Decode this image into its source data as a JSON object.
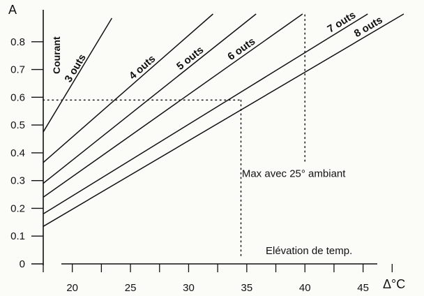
{
  "chart_data": {
    "type": "line",
    "title": "",
    "ylabel": "Courant",
    "yunit": "A",
    "xlabel": "Elévation de temp.",
    "xunit": "Δ°C",
    "xlim": [
      17.5,
      48.5
    ],
    "ylim": [
      0,
      0.9
    ],
    "x_ticks": [
      20,
      25,
      30,
      35,
      40,
      45
    ],
    "y_ticks": [
      0,
      0.1,
      0.2,
      0.3,
      0.4,
      0.5,
      0.6,
      0.7,
      0.8
    ],
    "y_tick_labels": [
      "0",
      "0.1",
      "0.2",
      "0.3",
      "0.4",
      "0.5",
      "0.6",
      "0.7",
      "0.8"
    ],
    "grid": false,
    "series": [
      {
        "name": "3 outs",
        "x": [
          17.5,
          23.4
        ],
        "y": [
          0.475,
          0.885
        ]
      },
      {
        "name": "4 outs",
        "x": [
          17.5,
          32.1
        ],
        "y": [
          0.365,
          0.9
        ]
      },
      {
        "name": "5 outs",
        "x": [
          17.5,
          35.8
        ],
        "y": [
          0.29,
          0.9
        ]
      },
      {
        "name": "6 outs",
        "x": [
          17.5,
          39.8
        ],
        "y": [
          0.24,
          0.9
        ]
      },
      {
        "name": "7 outs",
        "x": [
          17.5,
          45.4
        ],
        "y": [
          0.18,
          0.9
        ]
      },
      {
        "name": "8 outs",
        "x": [
          17.5,
          48.5
        ],
        "y": [
          0.135,
          0.9
        ]
      }
    ],
    "reference_lines": [
      {
        "type": "horizontal",
        "y": 0.59,
        "x_from": 17.5,
        "x_to": 34.5
      },
      {
        "type": "vertical",
        "x": 34.5,
        "y_from": 0.03,
        "y_to": 0.59
      },
      {
        "type": "vertical",
        "x": 40,
        "y_from": 0.37,
        "y_to": 0.9
      }
    ],
    "annotations": [
      {
        "text": "Max avec 25° ambiant",
        "x": 34.7,
        "y": 0.325
      }
    ]
  }
}
